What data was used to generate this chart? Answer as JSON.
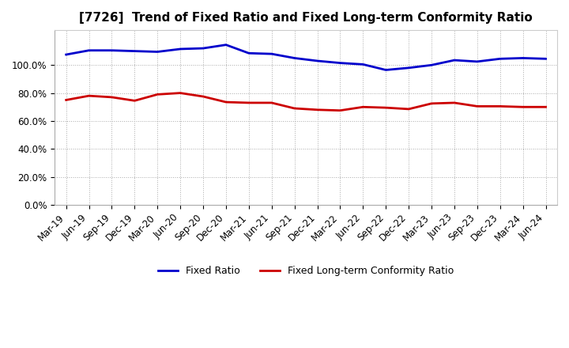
{
  "title": "[7726]  Trend of Fixed Ratio and Fixed Long-term Conformity Ratio",
  "x_labels": [
    "Mar-19",
    "Jun-19",
    "Sep-19",
    "Dec-19",
    "Mar-20",
    "Jun-20",
    "Sep-20",
    "Dec-20",
    "Mar-21",
    "Jun-21",
    "Sep-21",
    "Dec-21",
    "Mar-22",
    "Jun-22",
    "Sep-22",
    "Dec-22",
    "Mar-23",
    "Jun-23",
    "Sep-23",
    "Dec-23",
    "Mar-24",
    "Jun-24"
  ],
  "fixed_ratio": [
    107.5,
    110.5,
    110.5,
    110.0,
    109.5,
    111.5,
    112.0,
    114.5,
    108.5,
    108.0,
    105.0,
    103.0,
    101.5,
    100.5,
    96.5,
    98.0,
    100.0,
    103.5,
    102.5,
    104.5,
    105.0,
    104.5
  ],
  "fixed_lt_ratio": [
    75.0,
    78.0,
    77.0,
    74.5,
    79.0,
    80.0,
    77.5,
    73.5,
    73.0,
    73.0,
    69.0,
    68.0,
    67.5,
    70.0,
    69.5,
    68.5,
    72.5,
    73.0,
    70.5,
    70.5,
    70.0,
    70.0
  ],
  "fixed_ratio_color": "#0000CC",
  "fixed_lt_ratio_color": "#CC0000",
  "background_color": "#FFFFFF",
  "plot_bg_color": "#FFFFFF",
  "grid_color": "#AAAAAA",
  "ylim": [
    0,
    125
  ],
  "yticks": [
    0,
    20,
    40,
    60,
    80,
    100
  ],
  "ytick_labels": [
    "0.0%",
    "20.0%",
    "40.0%",
    "60.0%",
    "80.0%",
    "100.0%"
  ],
  "title_fontsize": 11,
  "tick_fontsize": 8.5,
  "legend_fontsize": 9,
  "linewidth": 2.0
}
